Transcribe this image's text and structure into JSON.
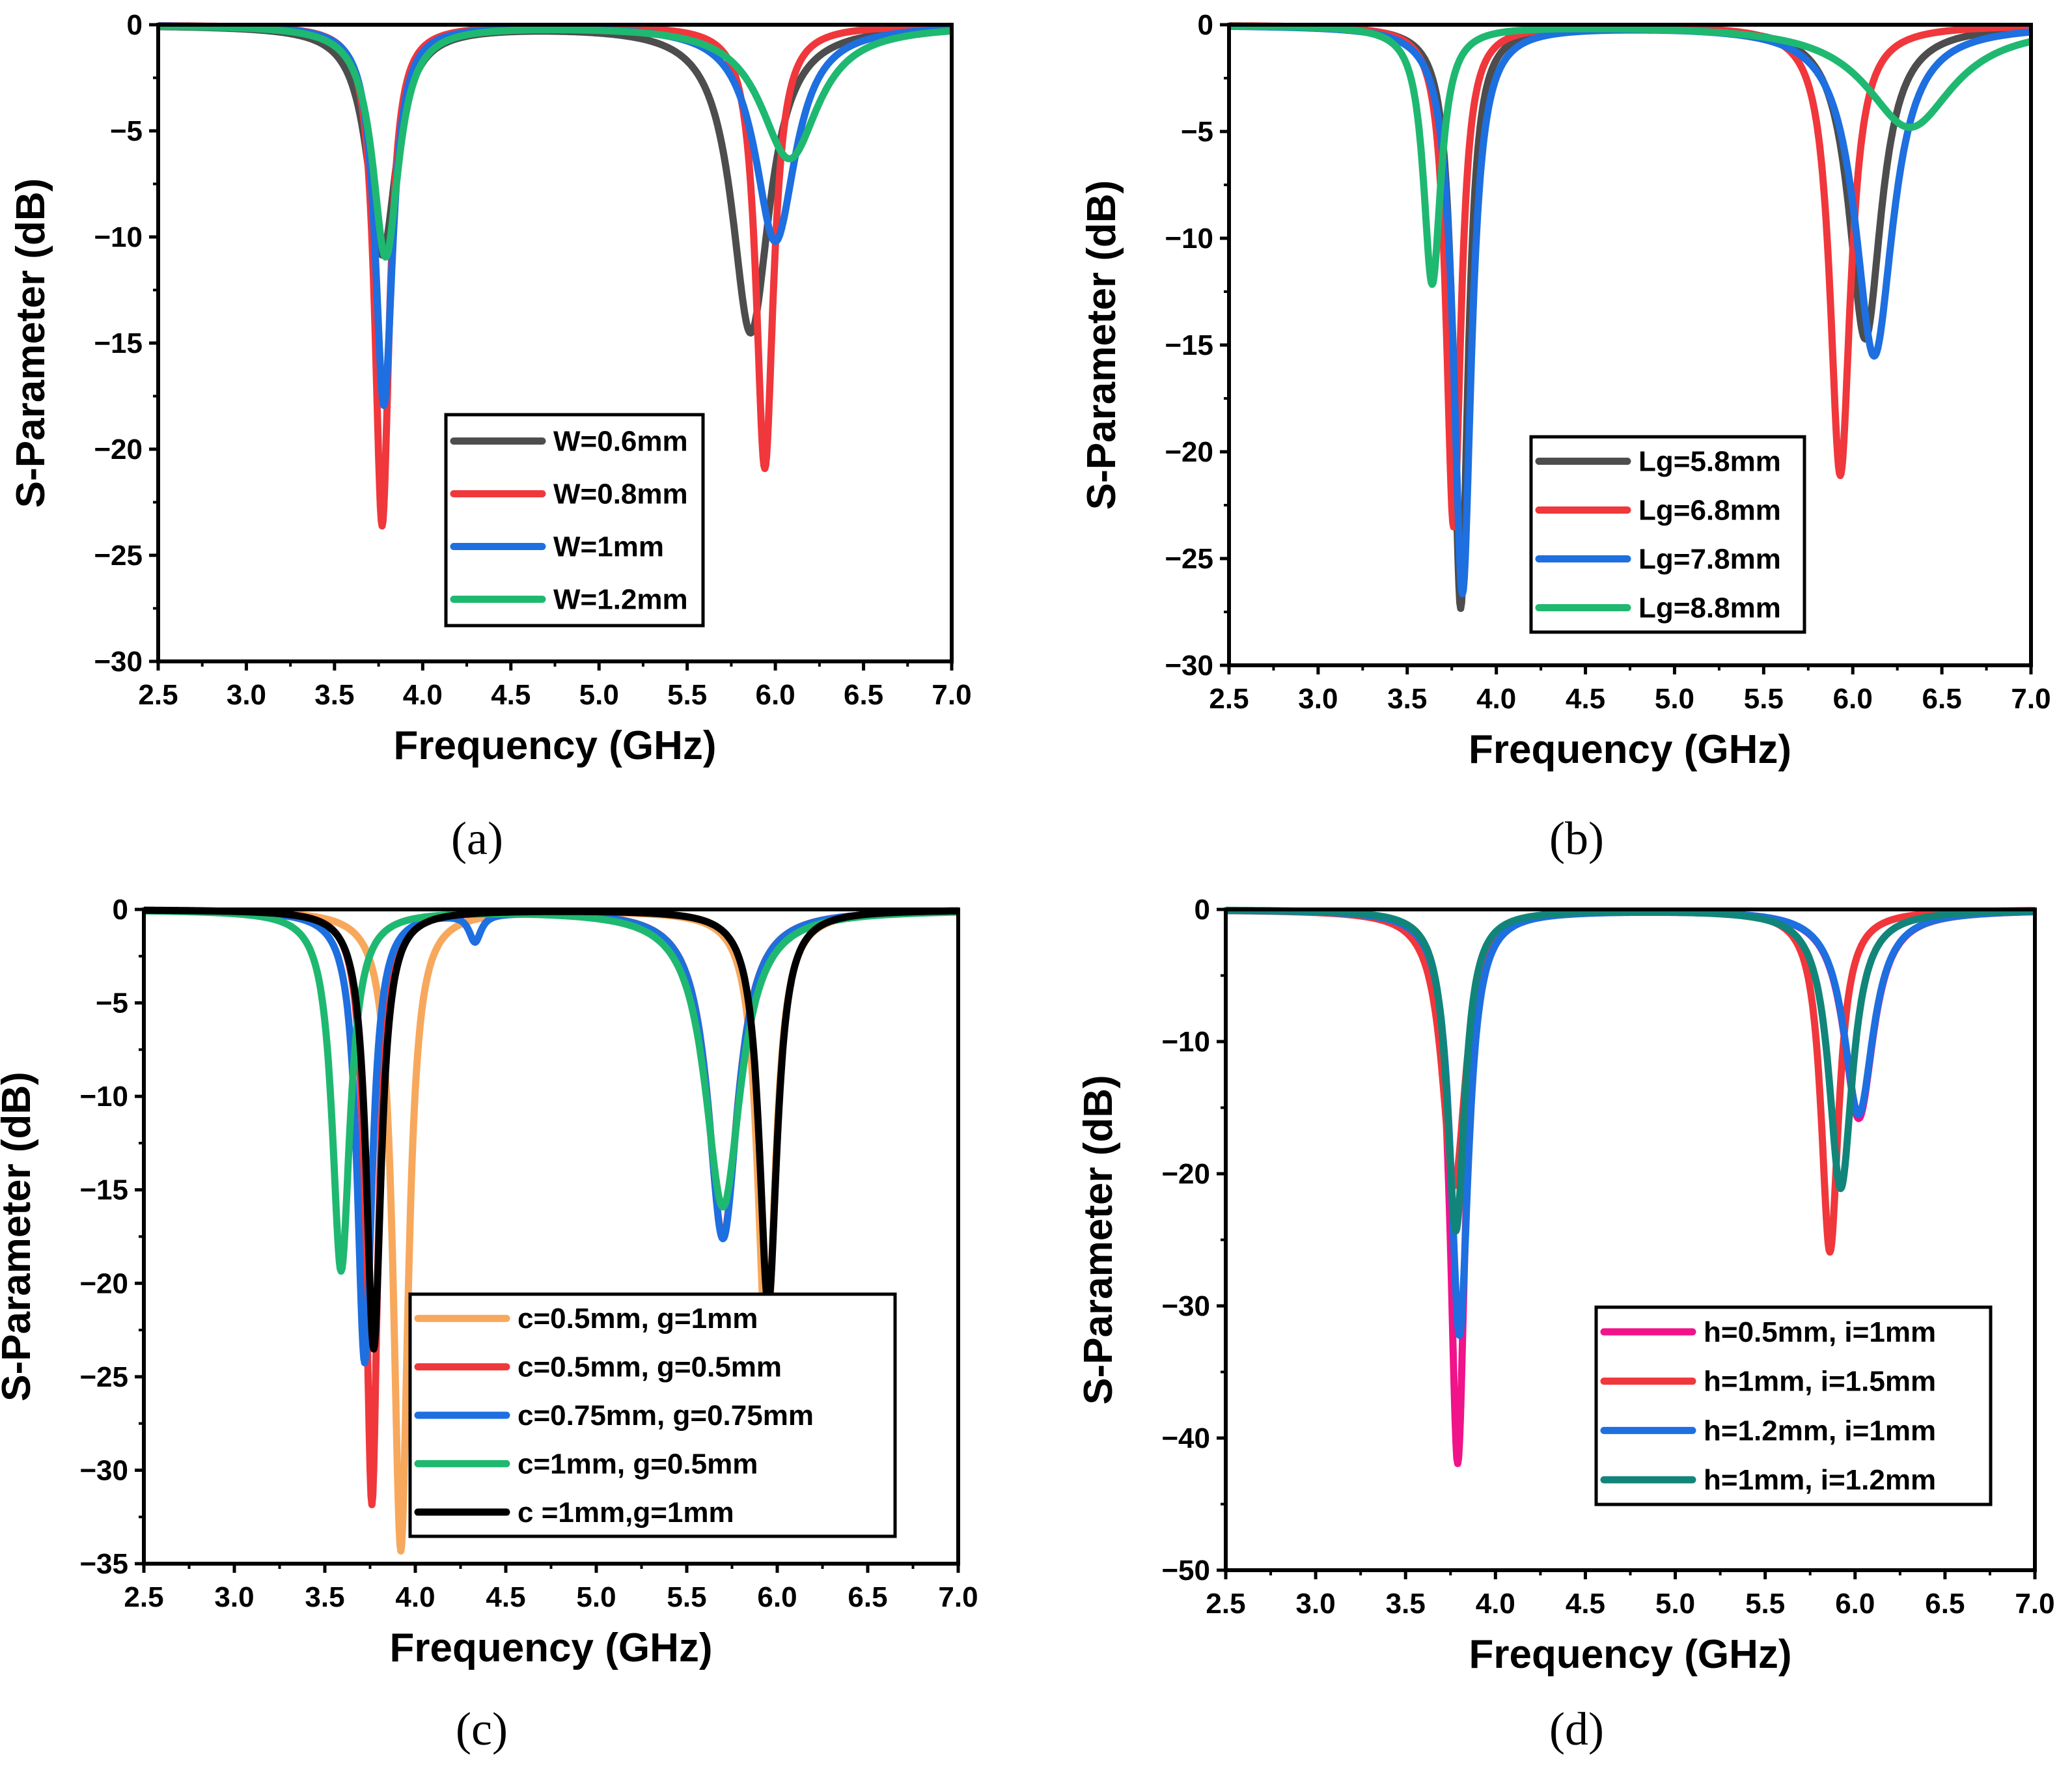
{
  "colors": {
    "gray": "#4d4d4d",
    "red": "#f0373c",
    "blue": "#1e6fe0",
    "green": "#1fb871",
    "orange": "#f7a85c",
    "black": "#000000",
    "magenta": "#f0138a",
    "teal": "#12857a"
  },
  "chart_data": [
    {
      "id": "a",
      "type": "line",
      "caption": "(a)",
      "xlabel": "Frequency (GHz)",
      "ylabel": "S-Parameter (dB)",
      "xlim": [
        2.5,
        7.0
      ],
      "ylim": [
        -30,
        0
      ],
      "xticks": [
        2.5,
        3.0,
        3.5,
        4.0,
        4.5,
        5.0,
        5.5,
        6.0,
        6.5,
        7.0
      ],
      "xtick_labels": [
        "2.5",
        "3.0",
        "3.5",
        "4.0",
        "4.5",
        "5.0",
        "5.5",
        "6.0",
        "6.5",
        "7.0"
      ],
      "yticks": [
        0,
        -5,
        -10,
        -15,
        -20,
        -25,
        -30
      ],
      "ytick_labels": [
        "0",
        "−5",
        "−10",
        "−15",
        "−20",
        "−25",
        "−30"
      ],
      "legend_position": "center",
      "series": [
        {
          "name": "W=0.6mm",
          "color": "#4d4d4d",
          "resonances": [
            [
              3.77,
              -10.8,
              0.1,
              0.3
            ],
            [
              5.86,
              -14.5,
              0.13,
              0.5
            ]
          ]
        },
        {
          "name": "W=0.8mm",
          "color": "#f0373c",
          "resonances": [
            [
              3.77,
              -23.6,
              0.05,
              0.3
            ],
            [
              5.94,
              -20.9,
              0.06,
              0.5
            ]
          ]
        },
        {
          "name": "W=1mm",
          "color": "#1e6fe0",
          "resonances": [
            [
              3.78,
              -17.9,
              0.06,
              0.3
            ],
            [
              6.0,
              -10.2,
              0.14,
              0.5
            ]
          ]
        },
        {
          "name": "W=1.2mm",
          "color": "#1fb871",
          "resonances": [
            [
              3.79,
              -10.9,
              0.09,
              0.3
            ],
            [
              6.08,
              -6.3,
              0.2,
              0.5
            ]
          ]
        }
      ]
    },
    {
      "id": "b",
      "type": "line",
      "caption": "(b)",
      "xlabel": "Frequency (GHz)",
      "ylabel": "S-Parameter (dB)",
      "xlim": [
        2.5,
        7.0
      ],
      "ylim": [
        -30,
        0
      ],
      "xticks": [
        2.5,
        3.0,
        3.5,
        4.0,
        4.5,
        5.0,
        5.5,
        6.0,
        6.5,
        7.0
      ],
      "xtick_labels": [
        "2.5",
        "3.0",
        "3.5",
        "4.0",
        "4.5",
        "5.0",
        "5.5",
        "6.0",
        "6.5",
        "7.0"
      ],
      "yticks": [
        0,
        -5,
        -10,
        -15,
        -20,
        -25,
        -30
      ],
      "ytick_labels": [
        "0",
        "−5",
        "−10",
        "−15",
        "−20",
        "−25",
        "−30"
      ],
      "legend_position": "center",
      "series": [
        {
          "name": "Lg=5.8mm",
          "color": "#4d4d4d",
          "resonances": [
            [
              3.8,
              -27.3,
              0.05,
              0.3
            ],
            [
              6.07,
              -14.7,
              0.11,
              0.5
            ]
          ]
        },
        {
          "name": "Lg=6.8mm",
          "color": "#f0373c",
          "resonances": [
            [
              3.76,
              -23.5,
              0.05,
              0.3
            ],
            [
              5.93,
              -21.1,
              0.07,
              0.5
            ]
          ]
        },
        {
          "name": "Lg=7.8mm",
          "color": "#1e6fe0",
          "resonances": [
            [
              3.81,
              -26.6,
              0.06,
              0.3
            ],
            [
              6.12,
              -15.5,
              0.13,
              0.5
            ]
          ]
        },
        {
          "name": "Lg=8.8mm",
          "color": "#1fb871",
          "resonances": [
            [
              3.64,
              -12.1,
              0.06,
              0.3
            ],
            [
              6.32,
              -4.8,
              0.3,
              0.5
            ]
          ]
        }
      ]
    },
    {
      "id": "c",
      "type": "line",
      "caption": "(c)",
      "xlabel": "Frequency (GHz)",
      "ylabel": "S-Parameter (dB)",
      "xlim": [
        2.5,
        7.0
      ],
      "ylim": [
        -35,
        0
      ],
      "xticks": [
        2.5,
        3.0,
        3.5,
        4.0,
        4.5,
        5.0,
        5.5,
        6.0,
        6.5,
        7.0
      ],
      "xtick_labels": [
        "2.5",
        "3.0",
        "3.5",
        "4.0",
        "4.5",
        "5.0",
        "5.5",
        "6.0",
        "6.5",
        "7.0"
      ],
      "yticks": [
        0,
        -5,
        -10,
        -15,
        -20,
        -25,
        -30,
        -35
      ],
      "ytick_labels": [
        "0",
        "−5",
        "−10",
        "−15",
        "−20",
        "−25",
        "−30",
        "−35"
      ],
      "legend_position": "bottom-center",
      "series": [
        {
          "name": "c=0.5mm, g=1mm",
          "color": "#f7a85c",
          "resonances": [
            [
              3.92,
              -34.3,
              0.05,
              0.3
            ],
            [
              5.94,
              -23.5,
              0.06,
              0.5
            ]
          ]
        },
        {
          "name": "c=0.5mm, g=0.5mm",
          "color": "#f0373c",
          "resonances": [
            [
              3.76,
              -31.8,
              0.04,
              0.3
            ],
            [
              5.7,
              -17.5,
              0.1,
              0.5
            ]
          ]
        },
        {
          "name": "c=0.75mm, g=0.75mm",
          "color": "#1e6fe0",
          "resonances": [
            [
              3.72,
              -24.2,
              0.05,
              0.3
            ],
            [
              4.33,
              -1.5,
              0.04,
              0
            ],
            [
              5.7,
              -17.6,
              0.1,
              0.5
            ]
          ]
        },
        {
          "name": "c=1mm, g=0.5mm",
          "color": "#1fb871",
          "resonances": [
            [
              3.59,
              -19.3,
              0.06,
              0.3
            ],
            [
              5.7,
              -15.9,
              0.12,
              0.5
            ]
          ]
        },
        {
          "name": "c =1mm,g=1mm",
          "color": "#000000",
          "resonances": [
            [
              3.77,
              -23.5,
              0.05,
              0.3
            ],
            [
              5.95,
              -21.1,
              0.06,
              0.5
            ]
          ]
        }
      ]
    },
    {
      "id": "d",
      "type": "line",
      "caption": "(d)",
      "xlabel": "Frequency (GHz)",
      "ylabel": "S-Parameter (dB)",
      "xlim": [
        2.5,
        7.0
      ],
      "ylim": [
        -50,
        0
      ],
      "xticks": [
        2.5,
        3.0,
        3.5,
        4.0,
        4.5,
        5.0,
        5.5,
        6.0,
        6.5,
        7.0
      ],
      "xtick_labels": [
        "2.5",
        "3.0",
        "3.5",
        "4.0",
        "4.5",
        "5.0",
        "5.5",
        "6.0",
        "6.5",
        "7.0"
      ],
      "yticks": [
        0,
        -10,
        -20,
        -30,
        -40,
        -50
      ],
      "ytick_labels": [
        "0",
        "−10",
        "−20",
        "−30",
        "−40",
        "−50"
      ],
      "legend_position": "bottom-right",
      "series": [
        {
          "name": "h=0.5mm, i=1mm",
          "color": "#f0138a",
          "resonances": [
            [
              3.79,
              -41.9,
              0.05,
              0.3
            ],
            [
              6.02,
              -15.8,
              0.1,
              0.5
            ]
          ]
        },
        {
          "name": "h=1mm, i=1.5mm",
          "color": "#f0373c",
          "resonances": [
            [
              3.77,
              -20.9,
              0.08,
              0.3
            ],
            [
              5.86,
              -25.9,
              0.06,
              0.5
            ]
          ]
        },
        {
          "name": "h=1.2mm, i=1mm",
          "color": "#1e6fe0",
          "resonances": [
            [
              3.8,
              -32.2,
              0.06,
              0.3
            ],
            [
              6.02,
              -15.5,
              0.1,
              0.5
            ]
          ]
        },
        {
          "name": "h=1mm, i=1.2mm",
          "color": "#12857a",
          "resonances": [
            [
              3.78,
              -24.3,
              0.06,
              0.3
            ],
            [
              5.92,
              -21.1,
              0.08,
              0.5
            ]
          ]
        }
      ]
    }
  ]
}
